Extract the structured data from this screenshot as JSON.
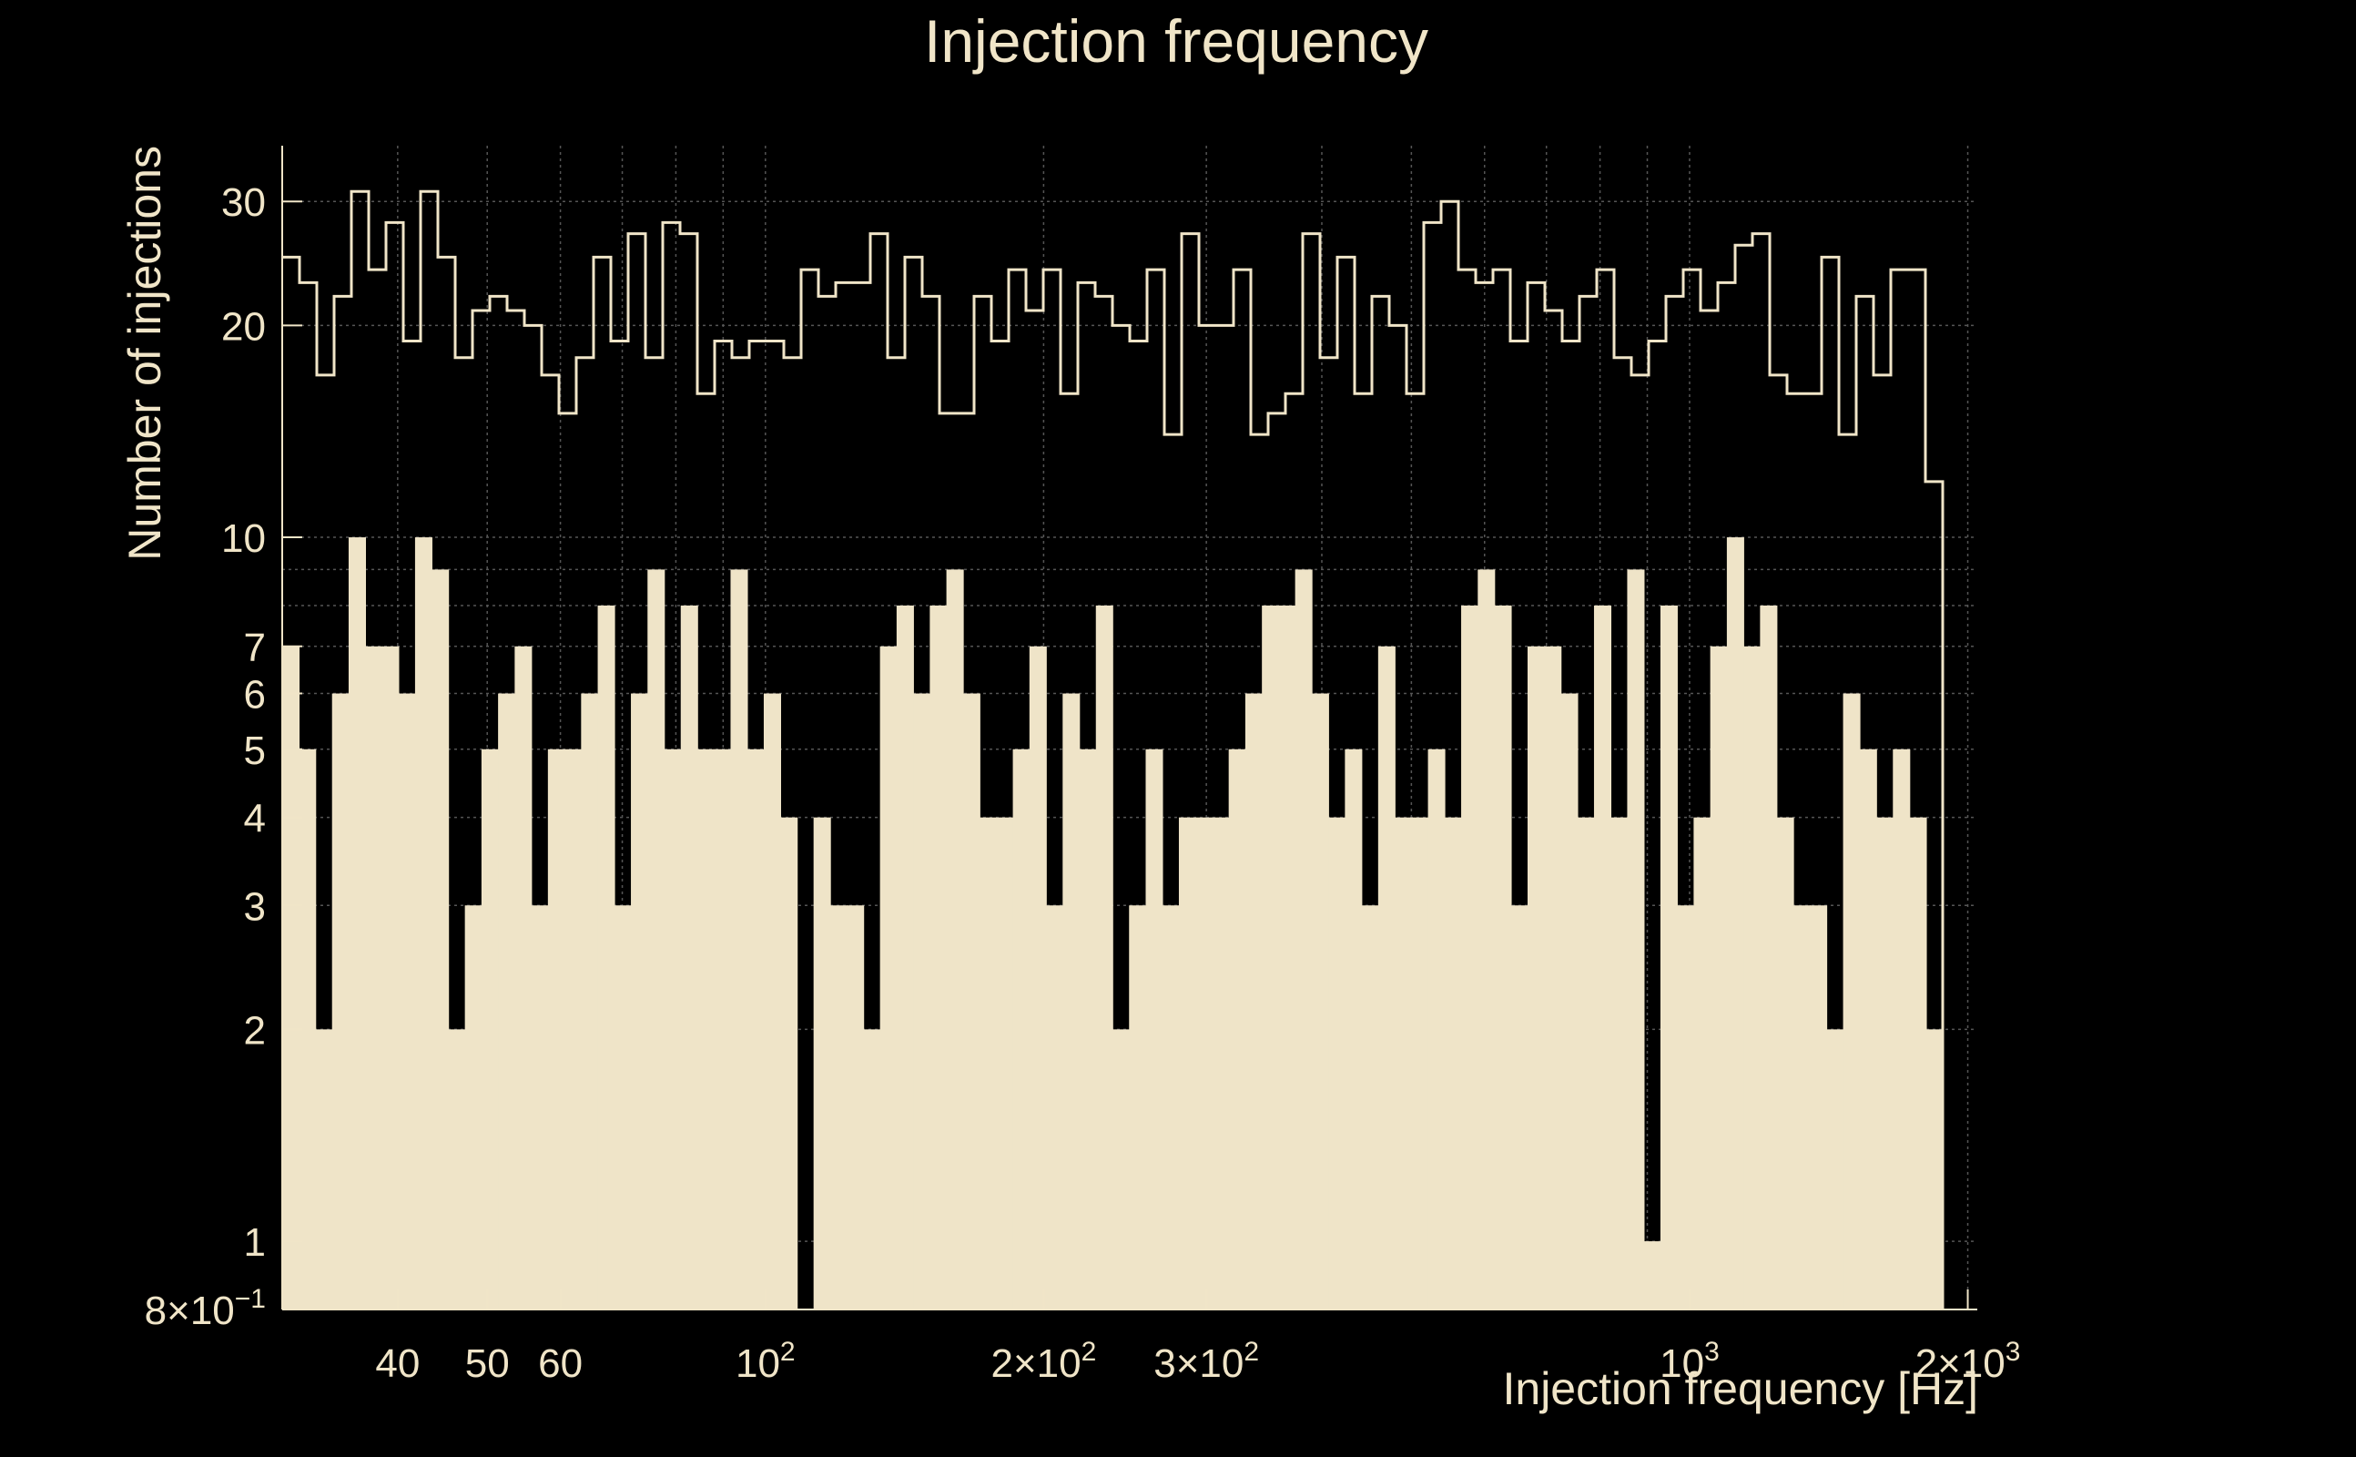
{
  "chart_data": {
    "type": "histogram",
    "title": "Injection frequency",
    "xlabel": "Injection frequency [Hz]",
    "ylabel": "Number of injections",
    "x_scale": "log",
    "y_scale": "log",
    "xlim": [
      30,
      2048
    ],
    "ylim": [
      0.8,
      36
    ],
    "grid": true,
    "colors": {
      "background": "#000000",
      "fill": "#efe4c8",
      "line": "#f0e5c8",
      "grid": "#555555"
    },
    "x_ticks": [
      {
        "value": 40,
        "label": "40"
      },
      {
        "value": 50,
        "label": "50"
      },
      {
        "value": 60,
        "label": "60"
      },
      {
        "value": 100,
        "label": "10",
        "exp": "2"
      },
      {
        "value": 200,
        "label": "2×10",
        "exp": "2"
      },
      {
        "value": 300,
        "label": "3×10",
        "exp": "2"
      },
      {
        "value": 1000,
        "label": "10",
        "exp": "3"
      },
      {
        "value": 2000,
        "label": "2×10",
        "exp": "3"
      }
    ],
    "x_grid_values": [
      40,
      50,
      60,
      70,
      80,
      90,
      100,
      200,
      300,
      400,
      500,
      600,
      700,
      800,
      900,
      1000,
      2000
    ],
    "y_ticks": [
      {
        "value": 0.8,
        "label": "8×10",
        "exp": "−1"
      },
      {
        "value": 1,
        "label": "1"
      },
      {
        "value": 2,
        "label": "2"
      },
      {
        "value": 3,
        "label": "3"
      },
      {
        "value": 4,
        "label": "4"
      },
      {
        "value": 5,
        "label": "5"
      },
      {
        "value": 6,
        "label": "6"
      },
      {
        "value": 7,
        "label": "7"
      },
      {
        "value": 10,
        "label": "10"
      },
      {
        "value": 20,
        "label": "20"
      },
      {
        "value": 30,
        "label": "30"
      }
    ],
    "y_grid_values": [
      0.8,
      1,
      2,
      3,
      4,
      5,
      6,
      7,
      8,
      9,
      10,
      20,
      30
    ],
    "series": [
      {
        "kind": "filled",
        "values": [
          7,
          5,
          2,
          6,
          10,
          7,
          7,
          6,
          10,
          9,
          2,
          3,
          5,
          6,
          7,
          3,
          5,
          5,
          6,
          8,
          3,
          6,
          9,
          5,
          8,
          5,
          5,
          9,
          5,
          6,
          4,
          0,
          4,
          3,
          3,
          2,
          7,
          8,
          6,
          8,
          9,
          6,
          4,
          4,
          5,
          7,
          3,
          6,
          5,
          8,
          2,
          3,
          5,
          3,
          4,
          4,
          4,
          5,
          6,
          8,
          8,
          9,
          6,
          4,
          5,
          3,
          7,
          4,
          4,
          5,
          4,
          8,
          9,
          8,
          3,
          7,
          7,
          6,
          4,
          8,
          4,
          9,
          1,
          8,
          3,
          4,
          7,
          10,
          7,
          8,
          4,
          3,
          3,
          2,
          6,
          5,
          4,
          5,
          4,
          2
        ]
      },
      {
        "kind": "outline",
        "values": [
          25,
          23,
          17,
          22,
          31,
          24,
          28,
          19,
          31,
          25,
          18,
          21,
          22,
          21,
          20,
          17,
          15,
          18,
          25,
          19,
          27,
          18,
          28,
          27,
          16,
          19,
          18,
          19,
          19,
          18,
          24,
          22,
          23,
          23,
          27,
          18,
          25,
          22,
          15,
          15,
          22,
          19,
          24,
          21,
          24,
          16,
          23,
          22,
          20,
          19,
          24,
          14,
          27,
          20,
          20,
          24,
          14,
          15,
          16,
          27,
          18,
          25,
          16,
          22,
          20,
          16,
          28,
          30,
          24,
          23,
          24,
          19,
          23,
          21,
          19,
          22,
          24,
          18,
          17,
          19,
          22,
          24,
          21,
          23,
          26,
          27,
          17,
          16,
          16,
          25,
          14,
          22,
          17,
          24,
          24,
          12
        ]
      }
    ]
  }
}
